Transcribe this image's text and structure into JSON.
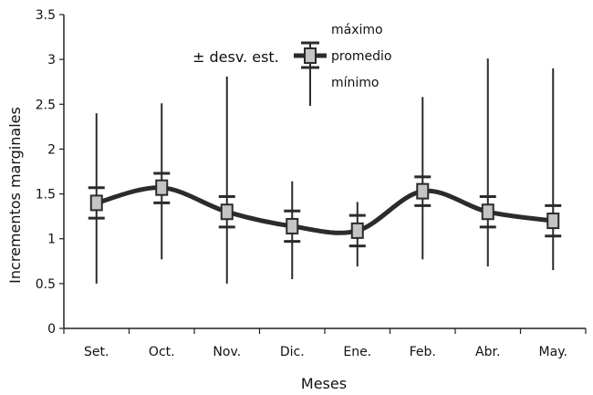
{
  "chart_data": {
    "type": "line",
    "categories": [
      "Set.",
      "Oct.",
      "Nov.",
      "Dic.",
      "Ene.",
      "Feb.",
      "Abr.",
      "May."
    ],
    "xlabel": "Meses",
    "ylabel": "Incrementos marginales",
    "ylim": [
      0,
      3.5
    ],
    "yticks": [
      "0",
      "0.5",
      "1",
      "1.5",
      "2",
      "2.5",
      "3",
      "3.5"
    ],
    "grid": false,
    "legend_position": "top-center",
    "legend": {
      "max_label": "máximo",
      "mean_label": "promedio",
      "min_label": "mínimo",
      "sd_label": "± desv. est."
    },
    "series": [
      {
        "mean": [
          1.4,
          1.57,
          1.3,
          1.14,
          1.09,
          1.53,
          1.3,
          1.2
        ],
        "sd_upper": [
          1.57,
          1.73,
          1.47,
          1.31,
          1.26,
          1.69,
          1.47,
          1.37
        ],
        "sd_lower": [
          1.23,
          1.4,
          1.13,
          0.97,
          0.92,
          1.37,
          1.13,
          1.03
        ],
        "max": [
          2.4,
          2.51,
          2.81,
          1.64,
          1.41,
          2.58,
          3.01,
          2.9
        ],
        "min": [
          0.5,
          0.77,
          0.5,
          0.55,
          0.69,
          0.77,
          0.69,
          0.65
        ]
      }
    ],
    "colors": {
      "line": "#2b2b2b",
      "marker_fill": "#c4c4c4",
      "axis": "#222222"
    }
  }
}
